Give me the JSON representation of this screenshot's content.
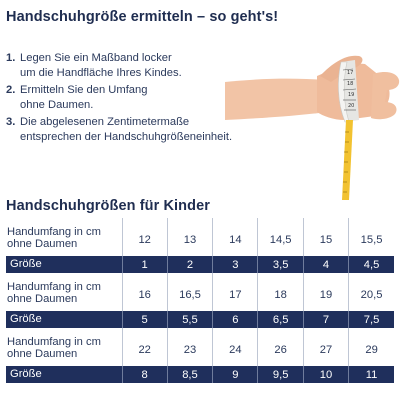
{
  "title": "Handschuhgröße ermitteln – so geht's!",
  "steps": [
    {
      "num": "1.",
      "text": "Legen Sie ein Maßband locker\num die Handfläche Ihres Kindes."
    },
    {
      "num": "2.",
      "text": "Ermitteln Sie den Umfang\nohne Daumen."
    },
    {
      "num": "3.",
      "text": "Die abgelesenen Zentimetermaße\nentsprechen der Handschuhgrößeneinheit."
    }
  ],
  "tape_numbers": [
    "17",
    "18",
    "19",
    "20"
  ],
  "table_title": "Handschuhgrößen für Kinder",
  "table": {
    "row_label_cm": "Handumfang in cm ohne Daumen",
    "row_label_size": "Größe",
    "blocks": [
      {
        "cm": [
          "12",
          "13",
          "14",
          "14,5",
          "15",
          "15,5"
        ],
        "size": [
          "1",
          "2",
          "3",
          "3,5",
          "4",
          "4,5"
        ]
      },
      {
        "cm": [
          "16",
          "16,5",
          "17",
          "18",
          "19",
          "20,5"
        ],
        "size": [
          "5",
          "5,5",
          "6",
          "6,5",
          "7",
          "7,5"
        ]
      },
      {
        "cm": [
          "22",
          "23",
          "24",
          "26",
          "27",
          "29"
        ],
        "size": [
          "8",
          "8,5",
          "9",
          "9,5",
          "10",
          "11"
        ]
      }
    ]
  },
  "colors": {
    "navy": "#1f2f5c",
    "text": "#2b3a5c",
    "tape_yellow": "#f2c230",
    "tape_white": "#f4f4f2",
    "skin": "#f2c4a6"
  }
}
